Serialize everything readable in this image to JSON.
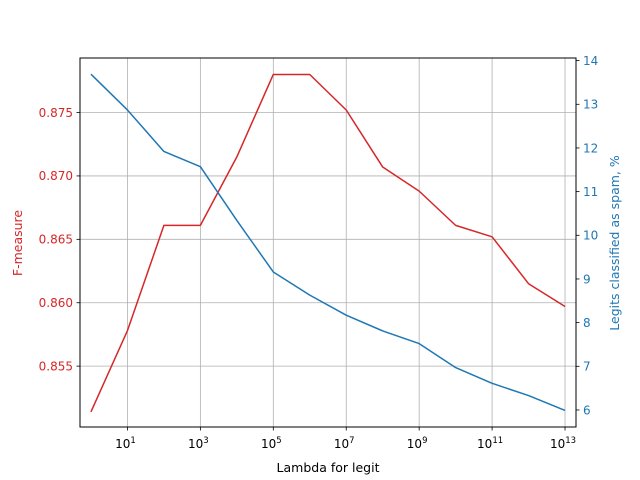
{
  "chart_data": {
    "type": "line",
    "xlabel": "Lambda for legit",
    "x_scale": "log10",
    "xlim": [
      0.5,
      20000000000000
    ],
    "x_ticks": [
      {
        "value": 10,
        "base": "10",
        "exp": "1"
      },
      {
        "value": 1000,
        "base": "10",
        "exp": "3"
      },
      {
        "value": 100000,
        "base": "10",
        "exp": "5"
      },
      {
        "value": 10000000,
        "base": "10",
        "exp": "7"
      },
      {
        "value": 1000000000,
        "base": "10",
        "exp": "9"
      },
      {
        "value": 100000000000,
        "base": "10",
        "exp": "11"
      },
      {
        "value": 10000000000000,
        "base": "10",
        "exp": "13"
      }
    ],
    "x": [
      1,
      10,
      100,
      1000,
      10000,
      100000,
      1000000,
      10000000,
      100000000,
      1000000000,
      10000000000,
      100000000000,
      1000000000000,
      10000000000000
    ],
    "left_axis": {
      "label": "F-measure",
      "color": "#d62728",
      "ylim": [
        0.8502,
        0.8793
      ],
      "ticks": [
        {
          "value": 0.855,
          "label": "0.855"
        },
        {
          "value": 0.86,
          "label": "0.860"
        },
        {
          "value": 0.865,
          "label": "0.865"
        },
        {
          "value": 0.87,
          "label": "0.870"
        },
        {
          "value": 0.875,
          "label": "0.875"
        }
      ]
    },
    "right_axis": {
      "label": "Legits classified as spam, %",
      "color": "#1f77b4",
      "ylim": [
        5.61,
        14.06
      ],
      "ticks": [
        {
          "value": 6,
          "label": "6"
        },
        {
          "value": 7,
          "label": "7"
        },
        {
          "value": 8,
          "label": "8"
        },
        {
          "value": 9,
          "label": "9"
        },
        {
          "value": 10,
          "label": "10"
        },
        {
          "value": 11,
          "label": "11"
        },
        {
          "value": 12,
          "label": "12"
        },
        {
          "value": 13,
          "label": "13"
        },
        {
          "value": 14,
          "label": "14"
        }
      ]
    },
    "series": [
      {
        "axis": "left",
        "color": "#d62728",
        "values": [
          0.8514,
          0.8578,
          0.8661,
          0.8661,
          0.8715,
          0.878,
          0.878,
          0.8752,
          0.8707,
          0.8688,
          0.8661,
          0.8652,
          0.8615,
          0.8597
        ]
      },
      {
        "axis": "right",
        "color": "#1f77b4",
        "values": [
          13.69,
          12.87,
          11.92,
          11.57,
          10.34,
          9.16,
          8.63,
          8.17,
          7.81,
          7.52,
          6.97,
          6.61,
          6.33,
          5.99
        ]
      }
    ],
    "grid": true,
    "legend": "none"
  }
}
